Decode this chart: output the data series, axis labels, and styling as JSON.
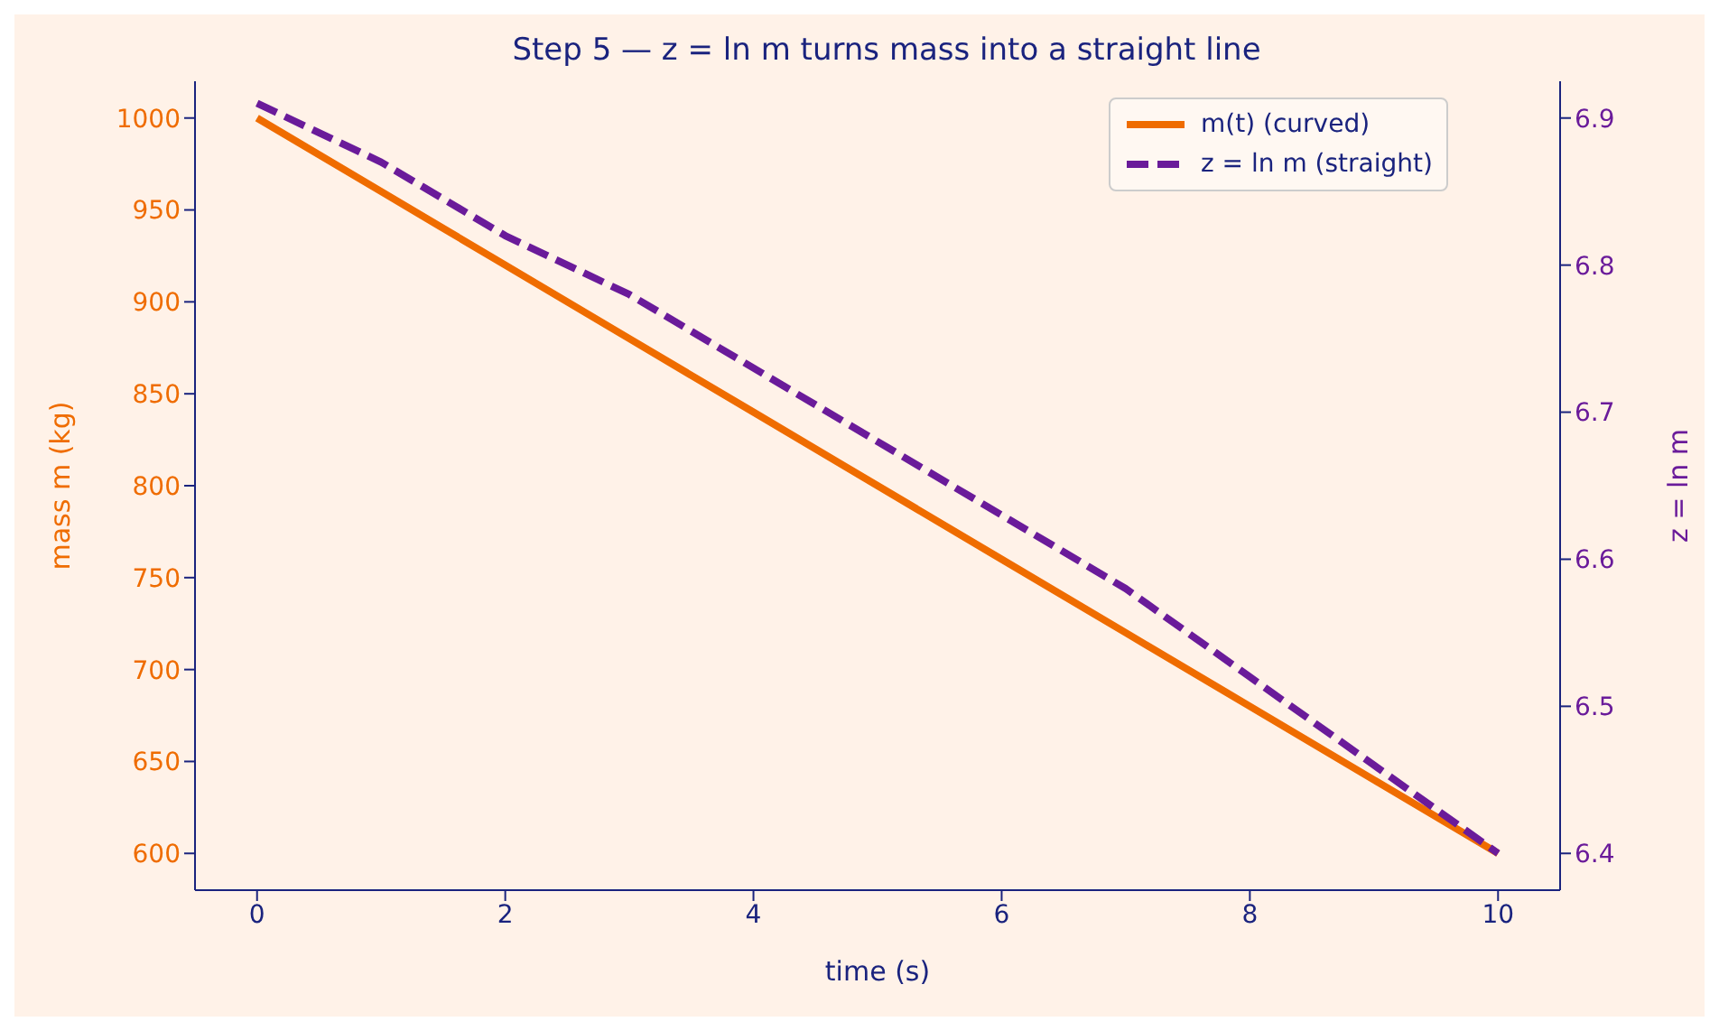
{
  "chart_data": {
    "type": "line",
    "title": "Step 5 — z = ln m turns mass into a straight line",
    "xlabel": "time (s)",
    "ylabel": "mass m (kg)",
    "y2label": "z = ln m",
    "x": [
      0,
      1,
      2,
      3,
      4,
      5,
      6,
      7,
      8,
      9,
      10
    ],
    "series": [
      {
        "name": "m(t) (curved)",
        "color": "#ef6c00",
        "line_style": "solid",
        "values": [
          1000,
          960,
          920,
          880,
          840,
          800,
          760,
          720,
          680,
          640,
          600
        ]
      },
      {
        "name": "z = ln m (straight)",
        "color": "#6a1b9a",
        "line_style": "dashed",
        "axis": "y2",
        "values": [
          6.91,
          6.87,
          6.82,
          6.78,
          6.73,
          6.68,
          6.63,
          6.58,
          6.52,
          6.46,
          6.4
        ]
      }
    ],
    "xlim": [
      -0.5,
      10.5
    ],
    "xticks": [
      0,
      2,
      4,
      6,
      8,
      10
    ],
    "ylim": [
      580,
      1020
    ],
    "yticks": [
      600,
      650,
      700,
      750,
      800,
      850,
      900,
      950,
      1000
    ],
    "y2lim": [
      6.375,
      6.925
    ],
    "y2ticks": [
      6.4,
      6.5,
      6.6,
      6.7,
      6.8,
      6.9
    ],
    "grid": false,
    "legend": "top right",
    "marker": "none"
  }
}
